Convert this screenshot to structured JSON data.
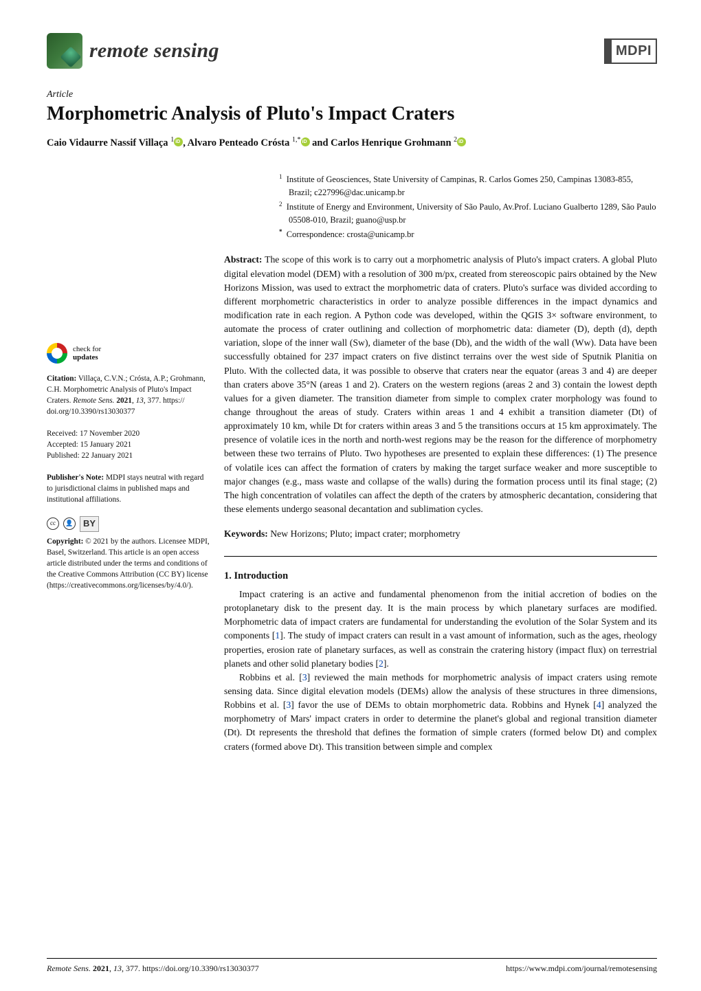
{
  "header": {
    "journal_name": "remote sensing",
    "publisher": "MDPI"
  },
  "article": {
    "type": "Article",
    "title": "Morphometric Analysis of Pluto's Impact Craters",
    "authors_html": "Caio Vidaurre Nassif Villaça ",
    "author_sup1": "1",
    "author2": ", Alvaro Penteado Crósta ",
    "author_sup2": "1,",
    "author_corr": "*",
    "author3": " and Carlos Henrique Grohmann ",
    "author_sup3": "2"
  },
  "affiliations": {
    "a1_sup": "1",
    "a1": "Institute of Geosciences, State University of Campinas, R. Carlos Gomes 250, Campinas 13083-855, Brazil; c227996@dac.unicamp.br",
    "a2_sup": "2",
    "a2": "Institute of Energy and Environment, University of São Paulo, Av.Prof. Luciano Gualberto 1289, São Paulo 05508-010, Brazil; guano@usp.br",
    "acorr_sup": "*",
    "acorr": "Correspondence: crosta@unicamp.br"
  },
  "sidebar": {
    "check_updates_line1": "check for",
    "check_updates_line2": "updates",
    "citation_label": "Citation:",
    "citation": " Villaça, C.V.N.; Crósta, A.P.; Grohmann, C.H. Morphometric Analysis of Pluto's Impact Craters. ",
    "citation_journal": "Remote Sens.",
    "citation_rest": " 2021, 13, 377. https://doi.org/10.3390/rs13030377",
    "citation_vol": "13",
    "received": "Received: 17 November 2020",
    "accepted": "Accepted: 15 January 2021",
    "published": "Published: 22 January 2021",
    "pubnote_label": "Publisher's Note:",
    "pubnote": " MDPI stays neutral with regard to jurisdictional claims in published maps and institutional affiliations.",
    "cc_label": "CC",
    "by_label": "BY",
    "copyright_label": "Copyright:",
    "copyright": " © 2021 by the authors. Licensee MDPI, Basel, Switzerland. This article is an open access article distributed under the terms and conditions of the Creative Commons Attribution (CC BY) license (https://creativecommons.org/licenses/by/4.0/)."
  },
  "abstract": {
    "label": "Abstract:",
    "text": " The scope of this work is to carry out a morphometric analysis of Pluto's impact craters. A global Pluto digital elevation model (DEM) with a resolution of 300 m/px, created from stereoscopic pairs obtained by the New Horizons Mission, was used to extract the morphometric data of craters. Pluto's surface was divided according to different morphometric characteristics in order to analyze possible differences in the impact dynamics and modification rate in each region. A Python code was developed, within the QGIS 3× software environment, to automate the process of crater outlining and collection of morphometric data: diameter (D), depth (d), depth variation, slope of the inner wall (Sw), diameter of the base (Db), and the width of the wall (Ww). Data have been successfully obtained for 237 impact craters on five distinct terrains over the west side of Sputnik Planitia on Pluto. With the collected data, it was possible to observe that craters near the equator (areas 3 and 4) are deeper than craters above 35°N (areas 1 and 2). Craters on the western regions (areas 2 and 3) contain the lowest depth values for a given diameter. The transition diameter from simple to complex crater morphology was found to change throughout the areas of study. Craters within areas 1 and 4 exhibit a transition diameter (Dt) of approximately 10 km, while Dt for craters within areas 3 and 5 the transitions occurs at 15 km approximately. The presence of volatile ices in the north and north-west regions may be the reason for the difference of morphometry between these two terrains of Pluto. Two hypotheses are presented to explain these differences: (1) The presence of volatile ices can affect the formation of craters by making the target surface weaker and more susceptible to major changes (e.g., mass waste and collapse of the walls) during the formation process until its final stage; (2) The high concentration of volatiles can affect the depth of the craters by atmospheric decantation, considering that these elements undergo seasonal decantation and sublimation cycles."
  },
  "keywords": {
    "label": "Keywords:",
    "text": " New Horizons; Pluto; impact crater; morphometry"
  },
  "section1": {
    "heading": "1. Introduction",
    "para1a": "Impact cratering is an active and fundamental phenomenon from the initial accretion of bodies on the protoplanetary disk to the present day. It is the main process by which planetary surfaces are modified. Morphometric data of impact craters are fundamental for understanding the evolution of the Solar System and its components [",
    "ref1": "1",
    "para1b": "]. The study of impact craters can result in a vast amount of information, such as the ages, rheology properties, erosion rate of planetary surfaces, as well as constrain the cratering history (impact flux) on terrestrial planets and other solid planetary bodies [",
    "ref2": "2",
    "para1c": "].",
    "para2a": "Robbins et al. [",
    "ref3a": "3",
    "para2b": "] reviewed the main methods for morphometric analysis of impact craters using remote sensing data. Since digital elevation models (DEMs) allow the analysis of these structures in three dimensions, Robbins et al. [",
    "ref3b": "3",
    "para2c": "] favor the use of DEMs to obtain morphometric data. Robbins and Hynek [",
    "ref4": "4",
    "para2d": "] analyzed the morphometry of Mars' impact craters in order to determine the planet's global and regional transition diameter (Dt). Dt represents the threshold that defines the formation of simple craters (formed below Dt) and complex craters (formed above Dt). This transition between simple and complex"
  },
  "footer": {
    "left_a": "Remote Sens.",
    "left_b": " 2021, 13, 377. https://doi.org/10.3390/rs13030377",
    "right": "https://www.mdpi.com/journal/remotesensing"
  },
  "colors": {
    "link": "#0645ad",
    "text": "#111111",
    "orcid": "#a6ce39"
  }
}
